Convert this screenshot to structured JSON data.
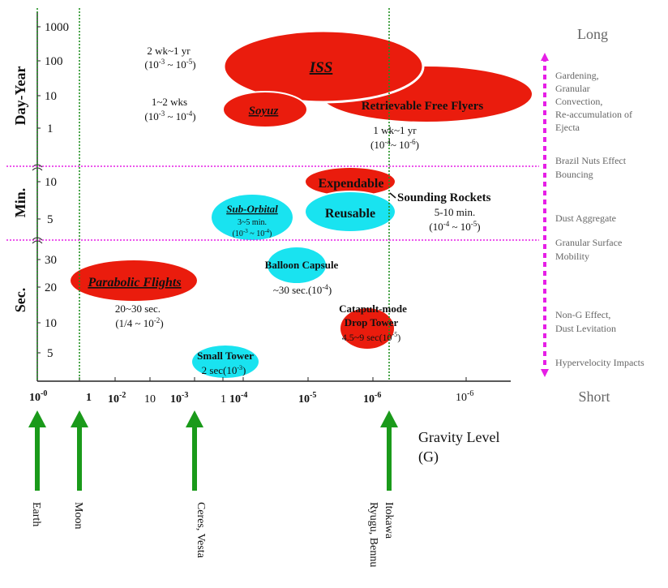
{
  "y_axis": {
    "bands": {
      "day_year": "Day-Year",
      "minutes": "Min.",
      "seconds": "Sec."
    },
    "day_year_ticks": [
      "1000",
      "100",
      "10",
      "1"
    ],
    "minute_ticks": [
      "10",
      "5"
    ],
    "second_ticks": [
      "30",
      "20",
      "10",
      "5"
    ]
  },
  "x_axis": {
    "ticks": [
      "10",
      "-0",
      "1",
      "10",
      "-2",
      "10",
      "-3",
      "10",
      "-4",
      "10",
      "-5",
      "10",
      "-6",
      "10",
      "-6"
    ],
    "fragment_a": "10",
    "fragment_b": "1",
    "title_line1": "Gravity Level",
    "title_line2": "(G)"
  },
  "bodies": [
    "Earth",
    "Moon",
    "Ceres, Vesta",
    "Ryugu, Bennu",
    "Itokawa"
  ],
  "platforms": {
    "iss": "ISS",
    "soyuz": "Soyuz",
    "free_flyers": "Retrievable Free Flyers",
    "expendable": "Expendable",
    "reusable": "Reusable",
    "sub_orbital": "Sub-Orbital",
    "sub_orbital_duration": "3~5 min.",
    "sub_orbital_g_base": "(10",
    "sub_orbital_g_exp1": "-3",
    "sub_orbital_g_mid": " ~ 10",
    "sub_orbital_g_exp2": "-4",
    "sub_orbital_g_end": ")",
    "sounding_rockets": "Sounding Rockets",
    "balloon": "Balloon Capsule",
    "parabolic": "Parabolic Flights",
    "catapult_line1": "Catapult-mode",
    "catapult_line2": "Drop Tower",
    "catapult_duration": "4.5~9 sec(10",
    "catapult_exp": "-5",
    "catapult_end": ")",
    "small_tower": "Small Tower",
    "small_tower_duration": "2 sec(10",
    "small_tower_exp": "-3",
    "small_tower_end": ")"
  },
  "annotations": {
    "iss_duration": "2 wk~1 yr",
    "iss_g_base": "(10",
    "iss_g_exp1": "-3",
    "iss_g_mid": " ~ 10",
    "iss_g_exp2": "-5",
    "iss_g_end": ")",
    "soyuz_duration": "1~2 wks",
    "soyuz_g_base": "(10",
    "soyuz_g_exp1": "-3",
    "soyuz_g_mid": " ~ 10",
    "soyuz_g_exp2": "-4",
    "soyuz_g_end": ")",
    "ff_duration": "1 wk~1 yr",
    "ff_g_base": "(10",
    "ff_g_exp1": "-4",
    "ff_g_mid": "~ 10",
    "ff_g_exp2": "-6",
    "ff_g_end": ")",
    "rockets_duration": "5-10 min.",
    "rockets_g_base": "(10",
    "rockets_g_exp1": "-4",
    "rockets_g_mid": " ~ 10",
    "rockets_g_exp2": "-5",
    "rockets_g_end": ")",
    "balloon_g_base": "~30 sec.(10",
    "balloon_g_exp": "-4",
    "balloon_g_end": ")",
    "parabolic_duration": "20~30 sec.",
    "parabolic_g_base": "(1/4 ~ 10",
    "parabolic_g_exp": "-2",
    "parabolic_g_end": ")"
  },
  "right_scale": {
    "long": "Long",
    "short": "Short",
    "phenomena": [
      [
        "Gardening,",
        "Granular",
        "Convection,",
        "Re-accumulation of",
        "Ejecta"
      ],
      [
        "Brazil Nuts Effect",
        "Bouncing"
      ],
      [
        "Dust Aggregate"
      ],
      [
        "Granular Surface",
        " Mobility"
      ],
      [
        "Non-G Effect,",
        "Dust Levitation"
      ],
      [
        "Hypervelocity Impacts"
      ]
    ]
  },
  "colors": {
    "red": "#ea1c0d",
    "cyan": "#19e3f0",
    "green_guide": "#1f8f1f",
    "green_arrow": "#1a9a1a",
    "magenta": "#e61ee6",
    "gray_text": "#666666"
  }
}
